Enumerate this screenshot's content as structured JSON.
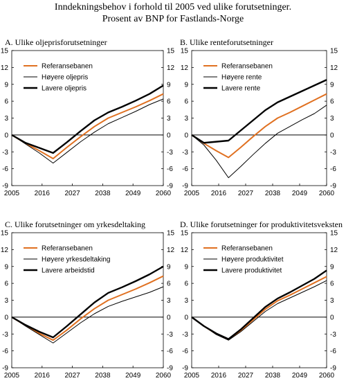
{
  "figure": {
    "title_line1": "Inndekningsbehov i forhold til 2005 ved ulike forutsetninger.",
    "title_line2": "Prosent av BNP for Fastlands-Norge"
  },
  "colors": {
    "referanse": "#e07020",
    "thin": "#000000",
    "thick": "#000000",
    "zero": "#000000"
  },
  "chart_data": [
    {
      "type": "line",
      "title": "A. Ulike oljeprisforutsetninger",
      "x_ticks": [
        "2005",
        "2016",
        "2027",
        "2038",
        "2049",
        "2060"
      ],
      "y_ticks": [
        "15",
        "12",
        "9",
        "6",
        "3",
        "0",
        "-3",
        "-6",
        "-9"
      ],
      "xlim": [
        2005,
        2060
      ],
      "ylim": [
        -9,
        15
      ],
      "legend": "top-left",
      "series": [
        {
          "name": "Referansebanen",
          "style": "ref",
          "x": [
            2005,
            2010,
            2015,
            2020,
            2025,
            2030,
            2035,
            2040,
            2045,
            2050,
            2055,
            2060
          ],
          "y": [
            0,
            -1.5,
            -2.8,
            -4.2,
            -2.2,
            -0.3,
            1.5,
            3.0,
            4.0,
            5.0,
            6.1,
            7.3
          ]
        },
        {
          "name": "Høyere oljepris",
          "style": "thin",
          "x": [
            2005,
            2010,
            2015,
            2020,
            2025,
            2030,
            2035,
            2040,
            2045,
            2050,
            2055,
            2060
          ],
          "y": [
            0,
            -1.6,
            -3.2,
            -5.0,
            -3.1,
            -1.2,
            0.5,
            2.0,
            3.1,
            4.2,
            5.4,
            6.4
          ]
        },
        {
          "name": "Lavere oljepris",
          "style": "thick",
          "x": [
            2005,
            2010,
            2015,
            2020,
            2025,
            2030,
            2035,
            2040,
            2045,
            2050,
            2055,
            2060
          ],
          "y": [
            0,
            -1.4,
            -2.3,
            -3.2,
            -1.3,
            0.7,
            2.6,
            4.0,
            5.0,
            6.1,
            7.3,
            8.8
          ]
        }
      ]
    },
    {
      "type": "line",
      "title": "B. Ulike renteforutsetninger",
      "x_ticks": [
        "2005",
        "2016",
        "2027",
        "2038",
        "2049",
        "2060"
      ],
      "y_ticks": [
        "15",
        "12",
        "9",
        "6",
        "3",
        "0",
        "-3",
        "-6",
        "-9"
      ],
      "xlim": [
        2005,
        2060
      ],
      "ylim": [
        -9,
        15
      ],
      "legend": "top-left",
      "series": [
        {
          "name": "Referansebanen",
          "style": "ref",
          "x": [
            2005,
            2010,
            2015,
            2020,
            2025,
            2030,
            2035,
            2040,
            2045,
            2050,
            2055,
            2060
          ],
          "y": [
            0,
            -1.5,
            -2.8,
            -4.0,
            -2.2,
            -0.3,
            1.5,
            3.0,
            4.0,
            5.1,
            6.2,
            7.3
          ]
        },
        {
          "name": "Høyere rente",
          "style": "thin",
          "x": [
            2005,
            2010,
            2015,
            2020,
            2025,
            2030,
            2035,
            2040,
            2045,
            2050,
            2055,
            2060
          ],
          "y": [
            0,
            -1.8,
            -4.5,
            -7.6,
            -5.6,
            -3.5,
            -1.5,
            0.3,
            1.5,
            2.7,
            3.8,
            5.3
          ]
        },
        {
          "name": "Lavere rente",
          "style": "thick",
          "x": [
            2005,
            2010,
            2015,
            2020,
            2025,
            2030,
            2035,
            2040,
            2045,
            2050,
            2055,
            2060
          ],
          "y": [
            0,
            -1.4,
            -1.2,
            -1.0,
            0.8,
            2.6,
            4.4,
            5.8,
            6.8,
            7.8,
            8.8,
            9.8
          ]
        }
      ]
    },
    {
      "type": "line",
      "title": "C. Ulike forutsetninger om yrkesdeltaking",
      "x_ticks": [
        "2005",
        "2016",
        "2027",
        "2038",
        "2049",
        "2060"
      ],
      "y_ticks": [
        "15",
        "12",
        "9",
        "6",
        "3",
        "0",
        "-3",
        "-6",
        "-9"
      ],
      "xlim": [
        2005,
        2060
      ],
      "ylim": [
        -9,
        15
      ],
      "legend": "top-left",
      "series": [
        {
          "name": "Referansebanen",
          "style": "ref",
          "x": [
            2005,
            2010,
            2015,
            2020,
            2025,
            2030,
            2035,
            2040,
            2045,
            2050,
            2055,
            2060
          ],
          "y": [
            0,
            -1.5,
            -2.9,
            -4.1,
            -2.3,
            -0.3,
            1.5,
            3.0,
            4.0,
            5.0,
            6.1,
            7.3
          ]
        },
        {
          "name": "Høyere yrkesdeltaking",
          "style": "thin",
          "x": [
            2005,
            2010,
            2015,
            2020,
            2025,
            2030,
            2035,
            2040,
            2045,
            2050,
            2055,
            2060
          ],
          "y": [
            0,
            -1.6,
            -3.1,
            -4.6,
            -2.8,
            -1.0,
            0.6,
            1.9,
            2.8,
            3.6,
            4.4,
            5.4
          ]
        },
        {
          "name": "Lavere arbeidstid",
          "style": "thick",
          "x": [
            2005,
            2010,
            2015,
            2020,
            2025,
            2030,
            2035,
            2040,
            2045,
            2050,
            2055,
            2060
          ],
          "y": [
            0,
            -1.4,
            -2.6,
            -3.6,
            -1.6,
            0.5,
            2.6,
            4.3,
            5.3,
            6.4,
            7.6,
            9.0
          ]
        }
      ]
    },
    {
      "type": "line",
      "title": "D. Ulike forutsetninger for produktivitetsveksten",
      "x_ticks": [
        "2005",
        "2016",
        "2027",
        "2038",
        "2049",
        "2060"
      ],
      "y_ticks": [
        "15",
        "12",
        "9",
        "6",
        "3",
        "0",
        "-3",
        "-6",
        "-9"
      ],
      "xlim": [
        2005,
        2060
      ],
      "ylim": [
        -9,
        15
      ],
      "legend": "top-left",
      "series": [
        {
          "name": "Referansebanen",
          "style": "ref",
          "x": [
            2005,
            2010,
            2015,
            2020,
            2025,
            2030,
            2035,
            2040,
            2045,
            2050,
            2055,
            2060
          ],
          "y": [
            0,
            -1.6,
            -3.0,
            -4.0,
            -2.4,
            -0.5,
            1.4,
            2.9,
            3.9,
            5.0,
            6.1,
            7.2
          ]
        },
        {
          "name": "Høyere produktivitet",
          "style": "thin",
          "x": [
            2005,
            2010,
            2015,
            2020,
            2025,
            2030,
            2035,
            2040,
            2045,
            2050,
            2055,
            2060
          ],
          "y": [
            0,
            -1.6,
            -3.1,
            -4.1,
            -2.6,
            -0.8,
            1.0,
            2.4,
            3.4,
            4.4,
            5.4,
            6.5
          ]
        },
        {
          "name": "Lavere produktivitet",
          "style": "thick",
          "x": [
            2005,
            2010,
            2015,
            2020,
            2025,
            2030,
            2035,
            2040,
            2045,
            2050,
            2055,
            2060
          ],
          "y": [
            0,
            -1.6,
            -2.9,
            -3.9,
            -2.2,
            -0.2,
            1.8,
            3.3,
            4.4,
            5.6,
            6.8,
            8.3
          ]
        }
      ]
    }
  ]
}
